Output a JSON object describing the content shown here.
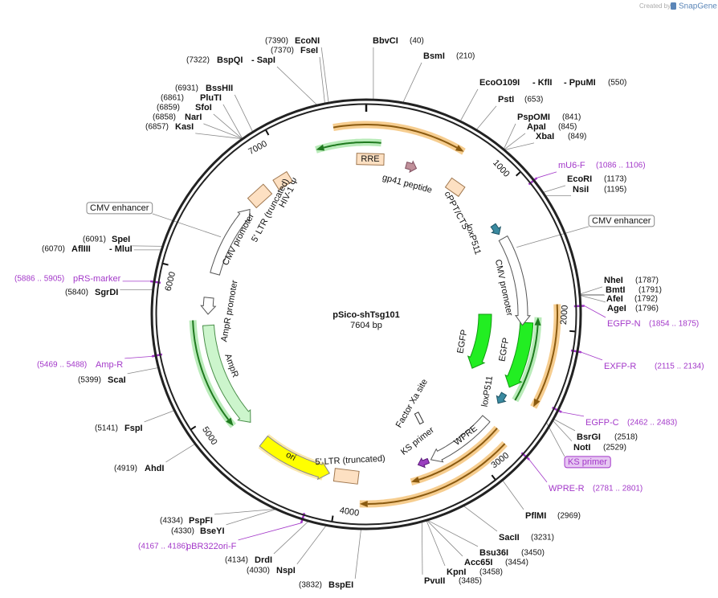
{
  "header": {
    "credit": "Created by",
    "brand": "SnapGene"
  },
  "plasmid": {
    "name": "pSico-shTsg101",
    "length": "7604 bp"
  },
  "scale_ticks": [
    "1000",
    "2000",
    "3000",
    "4000",
    "5000",
    "6000",
    "7000"
  ],
  "enzymes": [
    {
      "names": [
        "EcoNI"
      ],
      "position": "(7390)"
    },
    {
      "names": [
        "FseI"
      ],
      "position": "(7370)"
    },
    {
      "names": [
        "BspQI",
        "- SapI"
      ],
      "position": "(7322)"
    },
    {
      "names": [
        "BbvCI"
      ],
      "position": "(40)"
    },
    {
      "names": [
        "BsmI"
      ],
      "position": "(210)"
    },
    {
      "names": [
        "EcoO109I",
        "- KflI",
        "- PpuMI"
      ],
      "position": "(550)"
    },
    {
      "names": [
        "PstI"
      ],
      "position": "(653)"
    },
    {
      "names": [
        "PspOMI"
      ],
      "position": "(841)"
    },
    {
      "names": [
        "ApaI"
      ],
      "position": "(845)"
    },
    {
      "names": [
        "XbaI"
      ],
      "position": "(849)"
    },
    {
      "names": [
        "EcoRI"
      ],
      "position": "(1173)"
    },
    {
      "names": [
        "NsiI"
      ],
      "position": "(1195)"
    },
    {
      "names": [
        "NheI"
      ],
      "position": "(1787)"
    },
    {
      "names": [
        "BmtI"
      ],
      "position": "(1791)"
    },
    {
      "names": [
        "AfeI"
      ],
      "position": "(1792)"
    },
    {
      "names": [
        "AgeI"
      ],
      "position": "(1796)"
    },
    {
      "names": [
        "BsrGI"
      ],
      "position": "(2518)"
    },
    {
      "names": [
        "NotI"
      ],
      "position": "(2529)"
    },
    {
      "names": [
        "PflMI"
      ],
      "position": "(2969)"
    },
    {
      "names": [
        "SacII"
      ],
      "position": "(3231)"
    },
    {
      "names": [
        "Bsu36I"
      ],
      "position": "(3450)"
    },
    {
      "names": [
        "Acc65I"
      ],
      "position": "(3454)"
    },
    {
      "names": [
        "KpnI"
      ],
      "position": "(3458)"
    },
    {
      "names": [
        "PvuII"
      ],
      "position": "(3485)"
    },
    {
      "names": [
        "BspEI"
      ],
      "position": "(3832)"
    },
    {
      "names": [
        "NspI"
      ],
      "position": "(4030)"
    },
    {
      "names": [
        "DrdI"
      ],
      "position": "(4134)"
    },
    {
      "names": [
        "BseYI"
      ],
      "position": "(4330)"
    },
    {
      "names": [
        "PspFI"
      ],
      "position": "(4334)"
    },
    {
      "names": [
        "AhdI"
      ],
      "position": "(4919)"
    },
    {
      "names": [
        "FspI"
      ],
      "position": "(5141)"
    },
    {
      "names": [
        "ScaI"
      ],
      "position": "(5399)"
    },
    {
      "names": [
        "SgrDI"
      ],
      "position": "(5840)"
    },
    {
      "names": [
        "AflIII",
        "- MluI"
      ],
      "position": "(6070)"
    },
    {
      "names": [
        "SpeI"
      ],
      "position": "(6091)"
    },
    {
      "names": [
        "KasI"
      ],
      "position": "(6857)"
    },
    {
      "names": [
        "NarI"
      ],
      "position": "(6858)"
    },
    {
      "names": [
        "SfoI"
      ],
      "position": "(6859)"
    },
    {
      "names": [
        "PluTI"
      ],
      "position": "(6861)"
    },
    {
      "names": [
        "BssHII"
      ],
      "position": "(6931)"
    }
  ],
  "primers": [
    {
      "name": "mU6-F",
      "range": "(1086 .. 1106)"
    },
    {
      "name": "EGFP-N",
      "range": "(1854 .. 1875)"
    },
    {
      "name": "EXFP-R",
      "range": "(2115 .. 2134)"
    },
    {
      "name": "EGFP-C",
      "range": "(2462 .. 2483)"
    },
    {
      "name": "WPRE-R",
      "range": "(2781 .. 2801)"
    },
    {
      "name": "pBR322ori-F",
      "range": "(4167 .. 4186)"
    },
    {
      "name": "Amp-R",
      "range": "(5469 .. 5488)"
    },
    {
      "name": "pRS-marker",
      "range": "(5886 .. 5905)"
    }
  ],
  "callouts": [
    "CMV enhancer",
    "CMV enhancer",
    "KS primer"
  ],
  "features": [
    "RRE",
    "gp41 peptide",
    "cPPT/CTS",
    "loxP511",
    "CMV promoter",
    "EGFP",
    "EGFP",
    "loxP511",
    "Factor Xa site",
    "WPRE",
    "KS primer",
    "5' LTR (truncated)",
    "ori",
    "AmpR",
    "AmpR promoter",
    "CMV promoter",
    "5' LTR (truncated)",
    "HIV-1 Ψ"
  ]
}
